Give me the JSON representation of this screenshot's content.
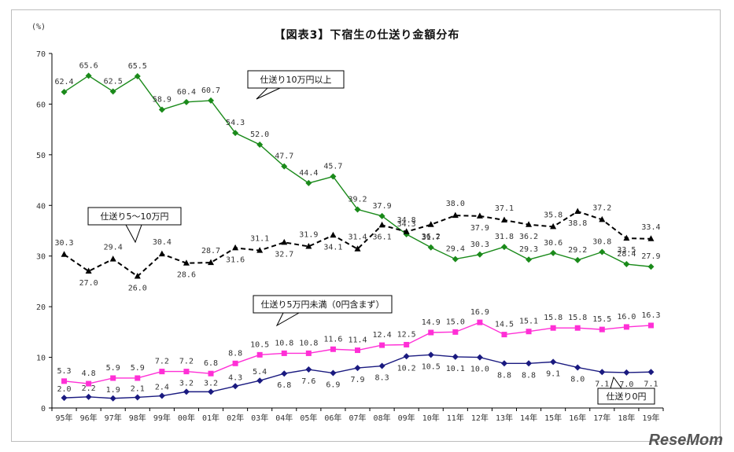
{
  "page": {
    "unit_label": "(%)",
    "watermark": "ReseMom"
  },
  "chart_data": {
    "type": "line",
    "title": "【図表3】下宿生の仕送り金額分布",
    "xlabel": "",
    "ylabel": "",
    "ylim": [
      0,
      70
    ],
    "yticks": [
      0,
      10,
      20,
      30,
      40,
      50,
      60,
      70
    ],
    "grid": false,
    "categories": [
      "95年",
      "96年",
      "97年",
      "98年",
      "99年",
      "00年",
      "01年",
      "02年",
      "03年",
      "04年",
      "05年",
      "06年",
      "07年",
      "08年",
      "09年",
      "10年",
      "11年",
      "12年",
      "13年",
      "14年",
      "15年",
      "16年",
      "17年",
      "18年",
      "19年"
    ],
    "series": [
      {
        "name": "仕送り10万円以上",
        "color": "#1a8a1a",
        "marker": "diamond",
        "dash": false,
        "values": [
          62.4,
          65.6,
          62.5,
          65.5,
          58.9,
          60.4,
          60.7,
          54.3,
          52.0,
          47.7,
          44.4,
          45.7,
          39.2,
          37.9,
          34.3,
          31.7,
          29.4,
          30.3,
          31.8,
          29.3,
          30.6,
          29.2,
          30.8,
          28.4,
          27.9
        ]
      },
      {
        "name": "仕送り5～10万円",
        "color": "#000000",
        "marker": "triangle",
        "dash": true,
        "values": [
          30.3,
          27.0,
          29.4,
          26.0,
          30.4,
          28.6,
          28.7,
          31.6,
          31.1,
          32.7,
          31.9,
          34.1,
          31.4,
          36.1,
          34.8,
          36.2,
          38.0,
          37.9,
          37.1,
          36.2,
          35.8,
          38.8,
          37.2,
          33.5,
          33.4
        ]
      },
      {
        "name": "仕送り5万円未満（0円含まず）",
        "color": "#ff2fd6",
        "marker": "square",
        "dash": false,
        "values": [
          5.3,
          4.8,
          5.9,
          5.9,
          7.2,
          7.2,
          6.8,
          8.8,
          10.5,
          10.8,
          10.8,
          11.6,
          11.4,
          12.4,
          12.5,
          14.9,
          15.0,
          16.9,
          14.5,
          15.1,
          15.8,
          15.8,
          15.5,
          16.0,
          16.3
        ]
      },
      {
        "name": "仕送り0円",
        "color": "#1a1a80",
        "marker": "diamond",
        "dash": false,
        "values": [
          2.0,
          2.2,
          1.9,
          2.1,
          2.4,
          3.2,
          3.2,
          4.3,
          5.4,
          6.8,
          7.6,
          6.9,
          7.9,
          8.3,
          10.2,
          10.5,
          10.1,
          10.0,
          8.8,
          8.8,
          9.1,
          8.0,
          7.1,
          7.0,
          7.1
        ]
      }
    ],
    "callouts": [
      {
        "series": 0,
        "text": "仕送り10万円以上"
      },
      {
        "series": 1,
        "text": "仕送り5～10万円"
      },
      {
        "series": 2,
        "text": "仕送り5万円未満（0円含まず）"
      },
      {
        "series": 3,
        "text": "仕送り0円"
      }
    ]
  }
}
